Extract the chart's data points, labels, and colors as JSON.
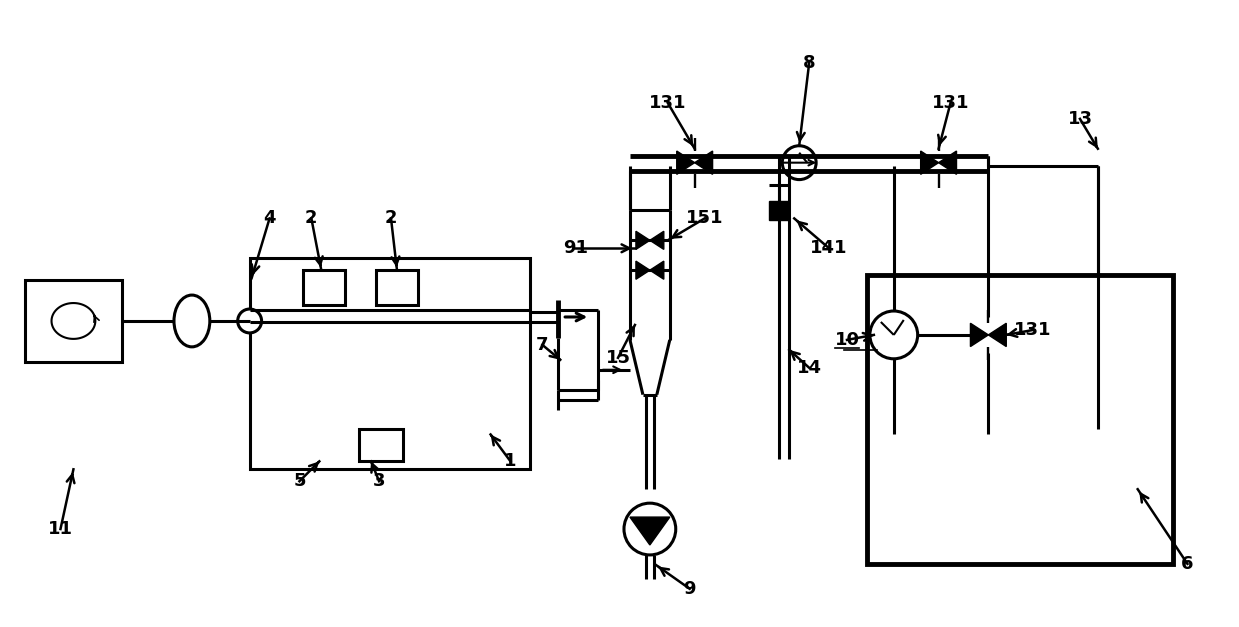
{
  "bg_color": "#ffffff",
  "lc": "#000000",
  "lw": 2.2,
  "lw_thick": 3.5,
  "fig_w": 12.39,
  "fig_h": 6.27
}
